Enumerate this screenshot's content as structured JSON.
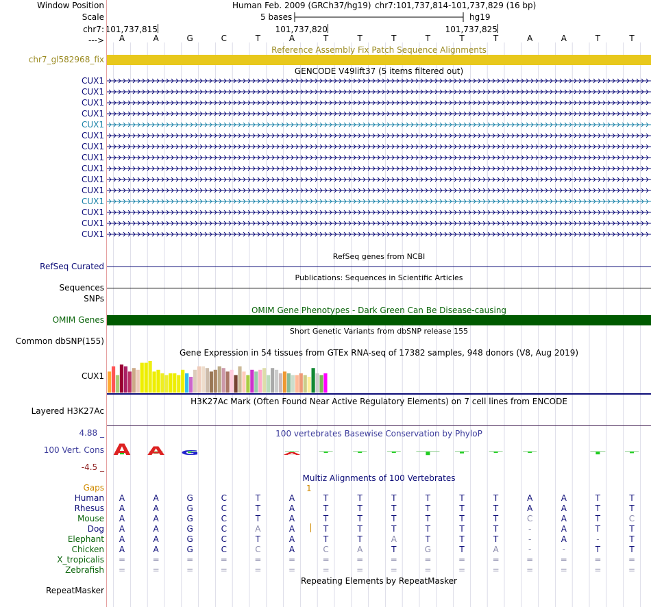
{
  "header": {
    "assembly_label": "Human Feb. 2009 (GRCh37/hg19)",
    "position_label": "chr7:101,737,814-101,737,829 (16 bp)",
    "scale_label": "5 bases",
    "scale_db": "hg19",
    "coords": [
      "101,737,815",
      "101,737,820",
      "101,737,825"
    ],
    "strand_arrow": "--->",
    "bases": [
      "A",
      "A",
      "G",
      "C",
      "T",
      "A",
      "T",
      "T",
      "T",
      "T",
      "T",
      "T",
      "A",
      "A",
      "T",
      "T"
    ]
  },
  "labels": {
    "window_position": "Window Position",
    "scale": "Scale",
    "chrom": "chr7:",
    "fix_track": "chr7_gl582968_fix",
    "refseq": "RefSeq Curated",
    "sequences": "Sequences",
    "snps": "SNPs",
    "omim": "OMIM Genes",
    "dbsnp": "Common dbSNP(155)",
    "gtex_gene": "CUX1",
    "h3k27ac": "Layered H3K27Ac",
    "cons_max": "4.88 _",
    "cons_label": "100 Vert. Cons",
    "cons_min": "-4.5 _",
    "gaps": "Gaps",
    "repeatmasker": "RepeatMasker"
  },
  "track_titles": {
    "fix_patch": "Reference Assembly Fix Patch Sequence Alignments",
    "gencode": "GENCODE V49lift37 (5 items filtered out)",
    "refseq": "RefSeq genes from NCBI",
    "publications": "Publications: Sequences in Scientific Articles",
    "omim": "OMIM Gene Phenotypes - Dark Green Can Be Disease-causing",
    "dbsnp": "Short Genetic Variants from dbSNP release 155",
    "gtex": "Gene Expression in 54 tissues from GTEx RNA-seq of 17382 samples, 948 donors (V8, Aug 2019)",
    "h3k27ac": "H3K27Ac Mark (Often Found Near Active Regulatory Elements) on 7 cell lines from ENCODE",
    "phylop": "100 vertebrates Basewise Conservation by PhyloP",
    "multiz": "Multiz Alignments of 100 Vertebrates",
    "repeatmasker": "Repeating Elements by RepeatMasker"
  },
  "gencode": {
    "transcripts": [
      {
        "name": "CUX1",
        "color": "#0c0c78"
      },
      {
        "name": "CUX1",
        "color": "#0c0c78"
      },
      {
        "name": "CUX1",
        "color": "#0c0c78"
      },
      {
        "name": "CUX1",
        "color": "#0c0c78"
      },
      {
        "name": "CUX1",
        "color": "#1a82a8"
      },
      {
        "name": "CUX1",
        "color": "#0c0c78"
      },
      {
        "name": "CUX1",
        "color": "#0c0c78"
      },
      {
        "name": "CUX1",
        "color": "#0c0c78"
      },
      {
        "name": "CUX1",
        "color": "#0c0c78"
      },
      {
        "name": "CUX1",
        "color": "#0c0c78"
      },
      {
        "name": "CUX1",
        "color": "#0c0c78"
      },
      {
        "name": "CUX1",
        "color": "#1a82a8"
      },
      {
        "name": "CUX1",
        "color": "#0c0c78"
      },
      {
        "name": "CUX1",
        "color": "#0c0c78"
      },
      {
        "name": "CUX1",
        "color": "#0c0c78"
      }
    ]
  },
  "gap_marker": "1",
  "multiz": {
    "species": [
      {
        "name": "Human",
        "color": "#0c0c78",
        "bases": [
          "A",
          "A",
          "G",
          "C",
          "T",
          "A",
          "T",
          "T",
          "T",
          "T",
          "T",
          "T",
          "A",
          "A",
          "T",
          "T"
        ]
      },
      {
        "name": "Rhesus",
        "color": "#0c0c78",
        "bases": [
          "A",
          "A",
          "G",
          "C",
          "T",
          "A",
          "T",
          "T",
          "T",
          "T",
          "T",
          "T",
          "A",
          "A",
          "T",
          "T"
        ]
      },
      {
        "name": "Mouse",
        "color": "#0a640a",
        "bases": [
          "A",
          "A",
          "G",
          "C",
          "T",
          "A",
          "T",
          "T",
          "T",
          "T",
          "T",
          "T",
          "C",
          "A",
          "T",
          "C"
        ]
      },
      {
        "name": "Dog",
        "color": "#0c0c78",
        "bases": [
          "A",
          "A",
          "G",
          "C",
          "A",
          "A",
          "T",
          "T",
          "T",
          "T",
          "T",
          "T",
          "-",
          "A",
          "T",
          "T"
        ]
      },
      {
        "name": "Elephant",
        "color": "#0a640a",
        "bases": [
          "A",
          "A",
          "G",
          "C",
          "T",
          "A",
          "T",
          "T",
          "A",
          "T",
          "T",
          "T",
          "-",
          "A",
          "-",
          "T"
        ]
      },
      {
        "name": "Chicken",
        "color": "#0a640a",
        "bases": [
          "A",
          "A",
          "G",
          "C",
          "C",
          "A",
          "C",
          "A",
          "T",
          "G",
          "T",
          "A",
          "-",
          "-",
          "T",
          "T"
        ]
      },
      {
        "name": "X_tropicalis",
        "color": "#0a640a",
        "bases": [
          "=",
          "=",
          "=",
          "=",
          "=",
          "=",
          "=",
          "=",
          "=",
          "=",
          "=",
          "=",
          "=",
          "=",
          "=",
          "="
        ]
      },
      {
        "name": "Zebrafish",
        "color": "#0a640a",
        "bases": [
          "=",
          "=",
          "=",
          "=",
          "=",
          "=",
          "=",
          "=",
          "=",
          "=",
          "=",
          "=",
          "=",
          "=",
          "=",
          "="
        ]
      }
    ]
  },
  "chart_data": {
    "type": "bar",
    "title": "Gene Expression in 54 tissues from GTEx RNA-seq of 17382 samples, 948 donors (V8, Aug 2019)",
    "gene": "CUX1",
    "values": [
      12,
      15,
      10,
      16,
      15,
      12,
      14,
      13,
      17,
      17,
      18,
      12,
      13,
      11,
      10,
      11,
      11,
      10,
      13,
      11,
      9,
      13,
      15,
      15,
      14,
      12,
      13,
      15,
      14,
      12,
      13,
      10,
      15,
      12,
      10,
      13,
      12,
      13,
      14,
      10,
      14,
      13,
      11,
      12,
      11,
      10,
      10,
      11,
      10,
      9,
      14,
      11,
      10,
      11
    ],
    "colors": [
      "#ffaa33",
      "#ff5555",
      "#aacc77",
      "#990033",
      "#aa2266",
      "#bb3366",
      "#ccaa88",
      "#eeccbb",
      "#eeee00",
      "#eeee00",
      "#eeee11",
      "#eeee00",
      "#eeee00",
      "#eeee22",
      "#eeee33",
      "#eeee00",
      "#eeee00",
      "#eeee11",
      "#eeee00",
      "#33bbee",
      "#cc66cc",
      "#ddccbb",
      "#eeccbb",
      "#eeddcc",
      "#ccbbaa",
      "#997755",
      "#aa8866",
      "#bbaa88",
      "#cc99aa",
      "#aa7766",
      "#ffccdd",
      "#774433",
      "#ccbb99",
      "#ffccbb",
      "#aacc44",
      "#cc33cc",
      "#99ccaa",
      "#ffaacc",
      "#ddddaa",
      "#bbddbb",
      "#aaaaaa",
      "#cccccc",
      "#ccbbbb",
      "#ee9933",
      "#88bb99",
      "#ccddcc",
      "#ffbb99",
      "#ee9977",
      "#cccc88",
      "#ffee99",
      "#118833",
      "#cccccc",
      "#77bb55",
      "#ff00ff"
    ]
  },
  "phylop": {
    "max": 4.88,
    "min": -4.5,
    "scores": [
      1.2,
      0.9,
      0.5,
      0,
      0,
      0.3,
      0.2,
      0.4,
      0.1,
      1.5,
      0.8,
      0.3,
      0.1,
      0,
      1.2,
      0.7
    ],
    "colors": {
      "positive": "#22cc22",
      "negative": "#dd2222",
      "logo_a": "#dd2222",
      "logo_g": "#2222cc"
    }
  },
  "colors": {
    "fix_bar": "#e8c81c",
    "omim_bar": "#005a00",
    "fix_label": "#9a8a20",
    "gencode_label": "#0c0c78",
    "omim_label": "#0a640a",
    "phylop_title": "#3a3a9a",
    "cons_scale": "#3a3a9a",
    "gaps_label": "#d08a00",
    "gap_marker": "#d08a00"
  }
}
